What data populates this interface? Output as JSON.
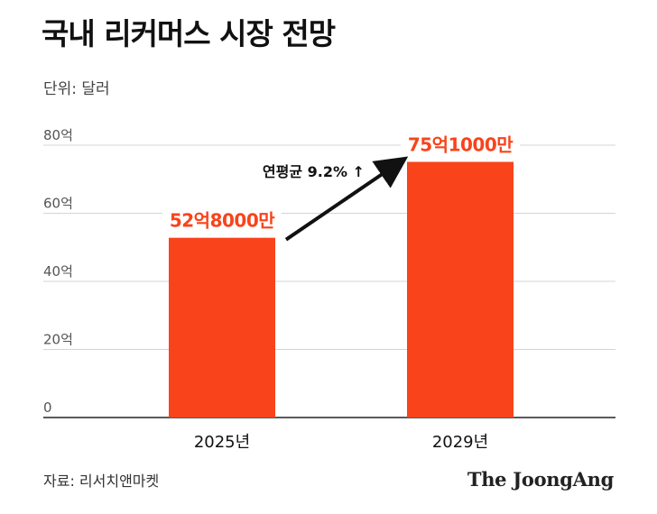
{
  "chart_data": {
    "type": "bar",
    "title": "국내 리커머스 시장 전망",
    "unit_label": "단위: 달러",
    "categories": [
      "2025년",
      "2029년"
    ],
    "values": [
      52.8,
      75.1
    ],
    "value_labels": [
      "52억8000만",
      "75억1000만"
    ],
    "ylim": [
      0,
      80
    ],
    "yticks": [
      0,
      20,
      40,
      60,
      80
    ],
    "ytick_labels": [
      "0",
      "20억",
      "40억",
      "60억",
      "80억"
    ],
    "annotation": "연평균 9.2% ↑",
    "grid": true,
    "xlabel": "",
    "ylabel": ""
  },
  "footer": {
    "source": "자료: 리서치앤마켓",
    "brand": "The JoongAng"
  },
  "colors": {
    "bar": "#f9431b",
    "value_label": "#f9431b",
    "grid": "#d4d4d4",
    "axis": "#222222",
    "arrow": "#111111"
  }
}
